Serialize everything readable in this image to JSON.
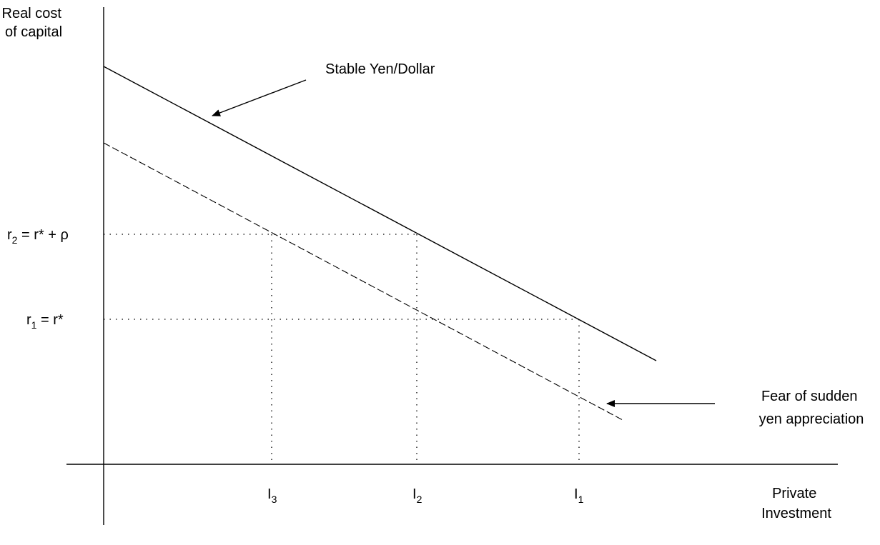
{
  "y_axis_label": [
    "Real cost",
    "of capital"
  ],
  "x_axis_label": [
    "Private",
    "Investment"
  ],
  "curves": {
    "stable": {
      "label": "Stable Yen/Dollar",
      "style": "solid"
    },
    "fear": {
      "label": [
        "Fear of sudden",
        "yen appreciation"
      ],
      "style": "dashed"
    }
  },
  "rate_labels": {
    "r2": {
      "base": "r",
      "sub": "2",
      "rest": " = r* + ρ"
    },
    "r1": {
      "base": "r",
      "sub": "1",
      "rest": " = r*"
    }
  },
  "investment_labels": {
    "I3": {
      "base": "I",
      "sub": "3"
    },
    "I2": {
      "base": "I",
      "sub": "2"
    },
    "I1": {
      "base": "I",
      "sub": "1"
    }
  },
  "colors": {
    "ink": "#000000",
    "background": "#ffffff"
  }
}
